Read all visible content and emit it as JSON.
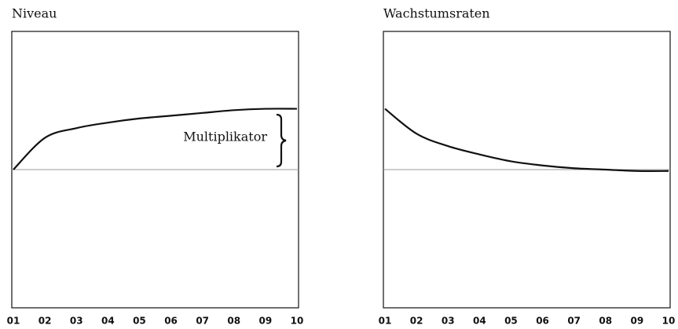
{
  "chart_data": [
    {
      "type": "line",
      "title": "Niveau",
      "categories": [
        "01",
        "02",
        "03",
        "04",
        "05",
        "06",
        "07",
        "08",
        "09",
        "10"
      ],
      "values": [
        0,
        0.23,
        0.3,
        0.34,
        0.37,
        0.39,
        0.41,
        0.43,
        0.44,
        0.44
      ],
      "color": "#111111",
      "ylim": [
        -1,
        1
      ],
      "annotation": "Multiplikator"
    },
    {
      "type": "line",
      "title": "Wachstumsraten",
      "categories": [
        "01",
        "02",
        "03",
        "04",
        "05",
        "06",
        "07",
        "08",
        "09",
        "10"
      ],
      "values": [
        0.44,
        0.26,
        0.17,
        0.11,
        0.06,
        0.03,
        0.01,
        0,
        -0.01,
        -0.01
      ],
      "color": "#111111",
      "ylim": [
        -1,
        1
      ]
    }
  ]
}
